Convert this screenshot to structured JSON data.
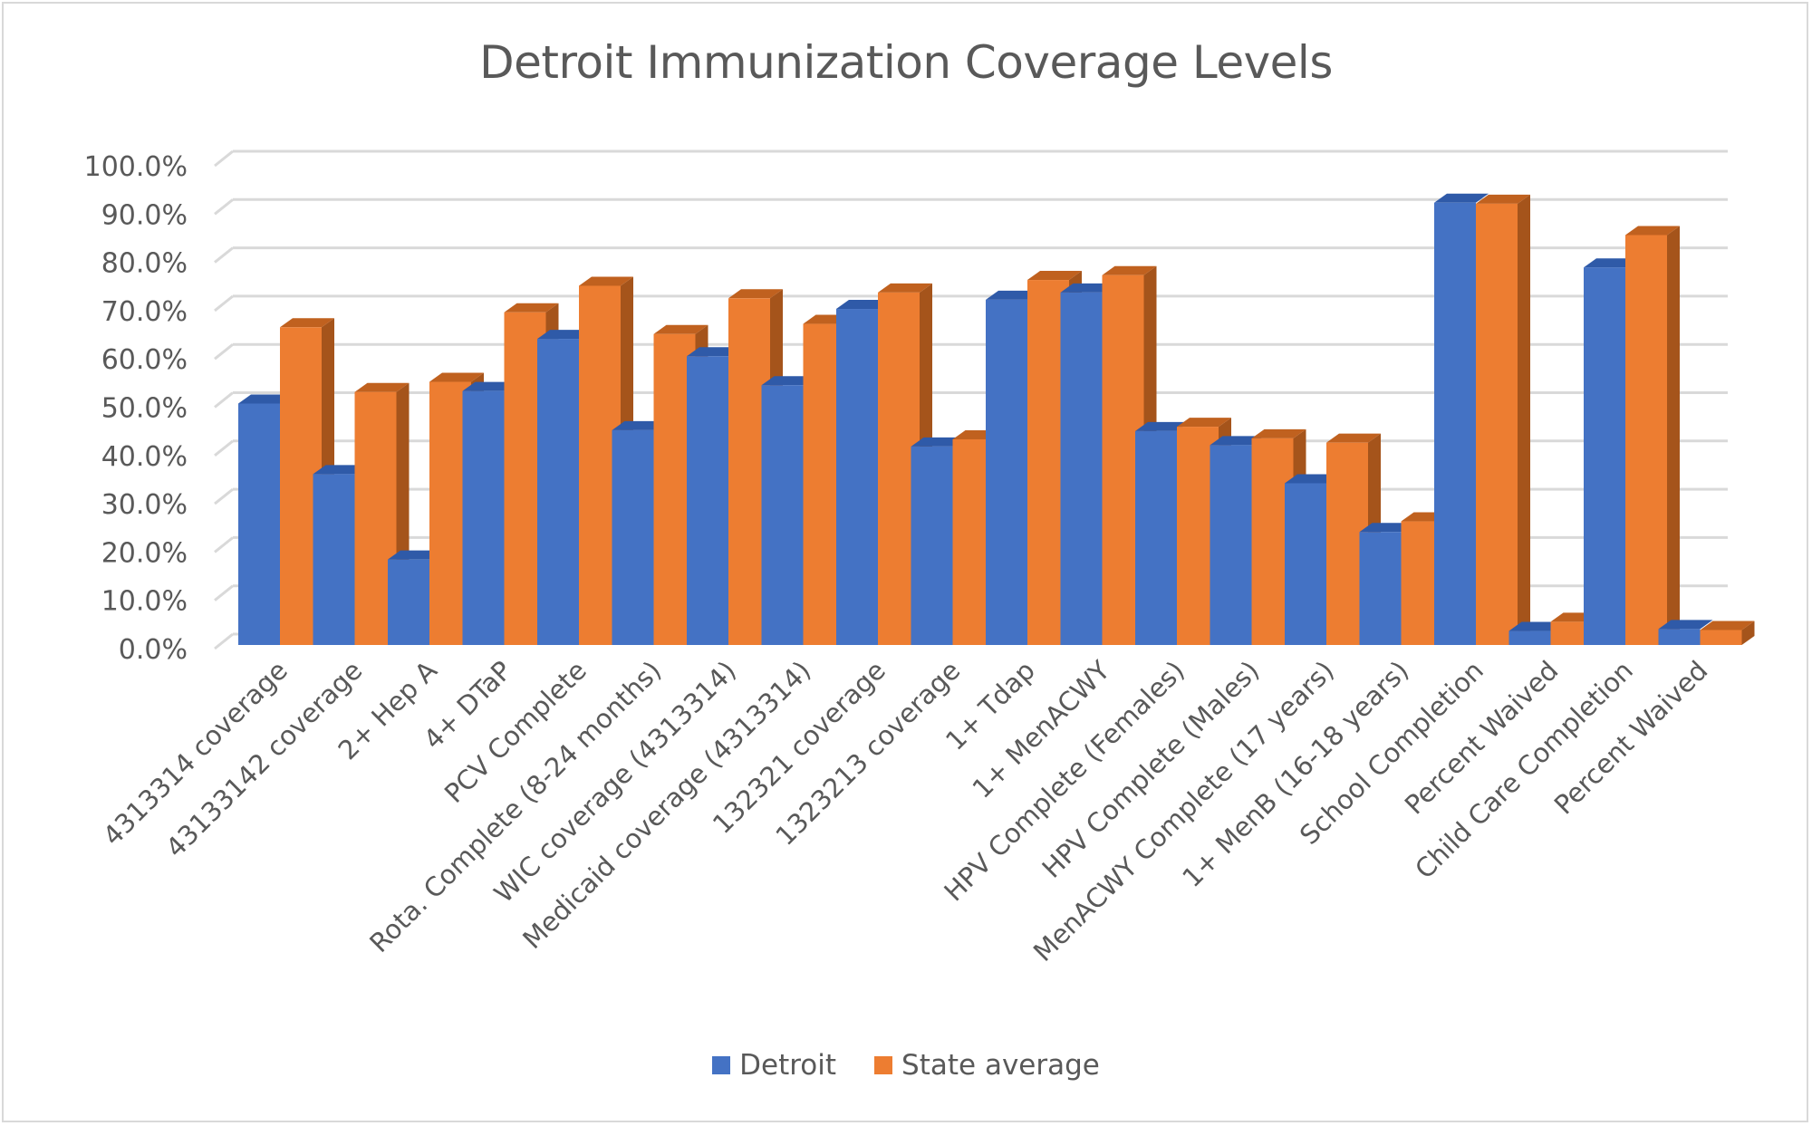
{
  "chart_data": {
    "type": "bar",
    "variant": "3d-clustered-column",
    "title": "Detroit Immunization Coverage Levels",
    "xlabel": "",
    "ylabel": "",
    "ylim": [
      0,
      100
    ],
    "y_ticks": [
      "0.0%",
      "10.0%",
      "20.0%",
      "30.0%",
      "40.0%",
      "50.0%",
      "60.0%",
      "70.0%",
      "80.0%",
      "90.0%",
      "100.0%"
    ],
    "y_tick_values": [
      0,
      10,
      20,
      30,
      40,
      50,
      60,
      70,
      80,
      90,
      100
    ],
    "grid": true,
    "legend_position": "bottom",
    "categories": [
      "4313314 coverage",
      "43133142 coverage",
      "2+ Hep A",
      "4+ DTaP",
      "PCV Complete",
      "Rota. Complete (8-24 months)",
      "WIC coverage (4313314)",
      "Medicaid coverage (4313314)",
      "132321 coverage",
      "1323213 coverage",
      "1+ Tdap",
      "1+ MenACWY",
      "HPV Complete (Females)",
      "HPV Complete (Males)",
      "MenACWY Complete (17 years)",
      "1+ MenB (16-18 years)",
      "School Completion",
      "Percent Waived",
      "Child Care Completion",
      "Percent Waived"
    ],
    "series": [
      {
        "name": "Detroit",
        "color": "#4472c4",
        "values": [
          50.0,
          35.4,
          17.7,
          52.6,
          63.4,
          44.5,
          59.8,
          53.8,
          69.6,
          41.1,
          71.5,
          73.0,
          44.3,
          41.4,
          33.5,
          23.4,
          91.6,
          2.9,
          78.2,
          3.3
        ]
      },
      {
        "name": "State average",
        "color": "#ed7d31",
        "values": [
          65.8,
          52.4,
          54.5,
          68.9,
          74.4,
          64.4,
          71.8,
          66.5,
          73.0,
          42.6,
          75.6,
          76.6,
          45.2,
          42.8,
          41.9,
          25.6,
          91.4,
          4.8,
          84.9,
          3.1
        ]
      }
    ]
  },
  "colors": {
    "grid": "#d9d9d9",
    "text": "#595959",
    "detroit_side": "#2f5597",
    "detroit_top": "#2f5aa8",
    "state_side": "#a5541b",
    "state_top": "#c0611f"
  }
}
